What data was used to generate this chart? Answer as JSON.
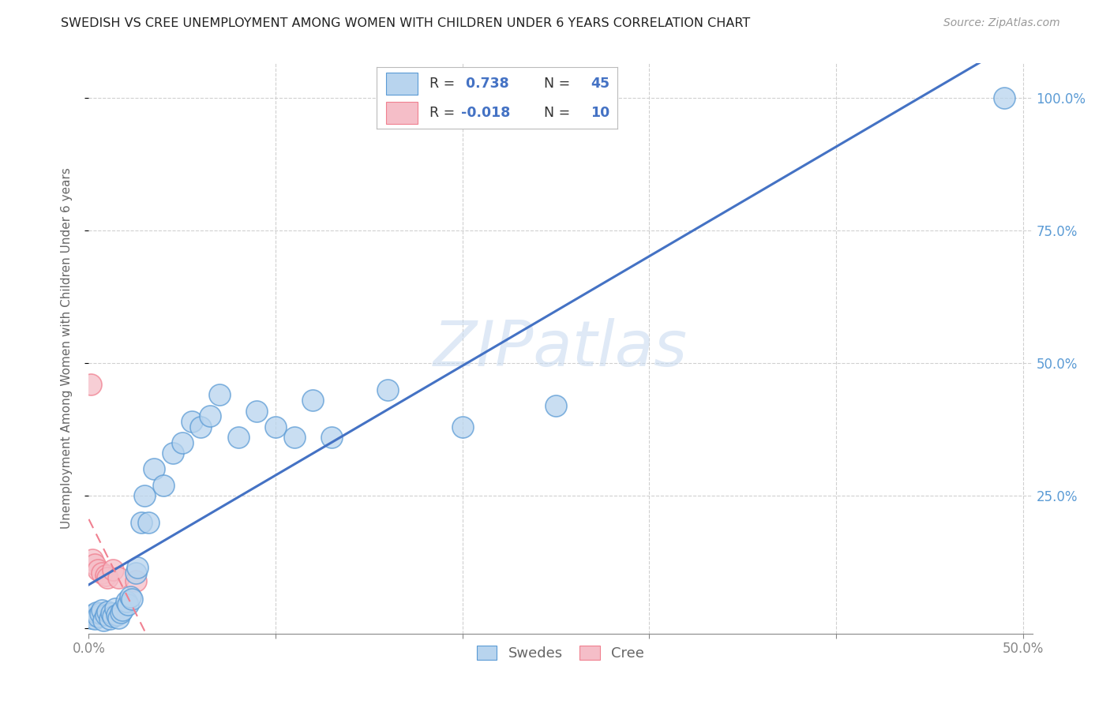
{
  "title": "SWEDISH VS CREE UNEMPLOYMENT AMONG WOMEN WITH CHILDREN UNDER 6 YEARS CORRELATION CHART",
  "source": "Source: ZipAtlas.com",
  "ylabel": "Unemployment Among Women with Children Under 6 years",
  "watermark": "ZIPatlas",
  "xlim": [
    0.0,
    0.505
  ],
  "ylim": [
    -0.01,
    1.065
  ],
  "swede_R": 0.738,
  "swede_N": 45,
  "cree_R": -0.018,
  "cree_N": 10,
  "swede_color": "#b8d4ee",
  "cree_color": "#f5bec8",
  "swede_edge_color": "#5b9bd5",
  "cree_edge_color": "#f08090",
  "swede_line_color": "#4472c4",
  "cree_line_color": "#f08090",
  "tick_color": "#888888",
  "label_color": "#5b9bd5",
  "grid_color": "#d0d0d0",
  "background_color": "#ffffff",
  "swede_x": [
    0.001,
    0.002,
    0.003,
    0.004,
    0.005,
    0.006,
    0.007,
    0.008,
    0.009,
    0.01,
    0.011,
    0.012,
    0.013,
    0.014,
    0.015,
    0.016,
    0.017,
    0.018,
    0.02,
    0.021,
    0.022,
    0.023,
    0.025,
    0.026,
    0.028,
    0.03,
    0.032,
    0.035,
    0.04,
    0.045,
    0.05,
    0.055,
    0.06,
    0.065,
    0.07,
    0.08,
    0.09,
    0.1,
    0.11,
    0.12,
    0.13,
    0.16,
    0.2,
    0.25,
    0.49
  ],
  "swede_y": [
    0.02,
    0.025,
    0.018,
    0.03,
    0.022,
    0.028,
    0.035,
    0.015,
    0.025,
    0.032,
    0.018,
    0.028,
    0.022,
    0.038,
    0.025,
    0.02,
    0.03,
    0.035,
    0.05,
    0.045,
    0.06,
    0.055,
    0.105,
    0.115,
    0.2,
    0.25,
    0.2,
    0.3,
    0.27,
    0.33,
    0.35,
    0.39,
    0.38,
    0.4,
    0.44,
    0.36,
    0.41,
    0.38,
    0.36,
    0.43,
    0.36,
    0.45,
    0.38,
    0.42,
    1.0
  ],
  "cree_x": [
    0.001,
    0.002,
    0.003,
    0.005,
    0.007,
    0.009,
    0.01,
    0.013,
    0.016,
    0.025
  ],
  "cree_y": [
    0.46,
    0.13,
    0.12,
    0.11,
    0.105,
    0.1,
    0.095,
    0.11,
    0.095,
    0.09
  ]
}
